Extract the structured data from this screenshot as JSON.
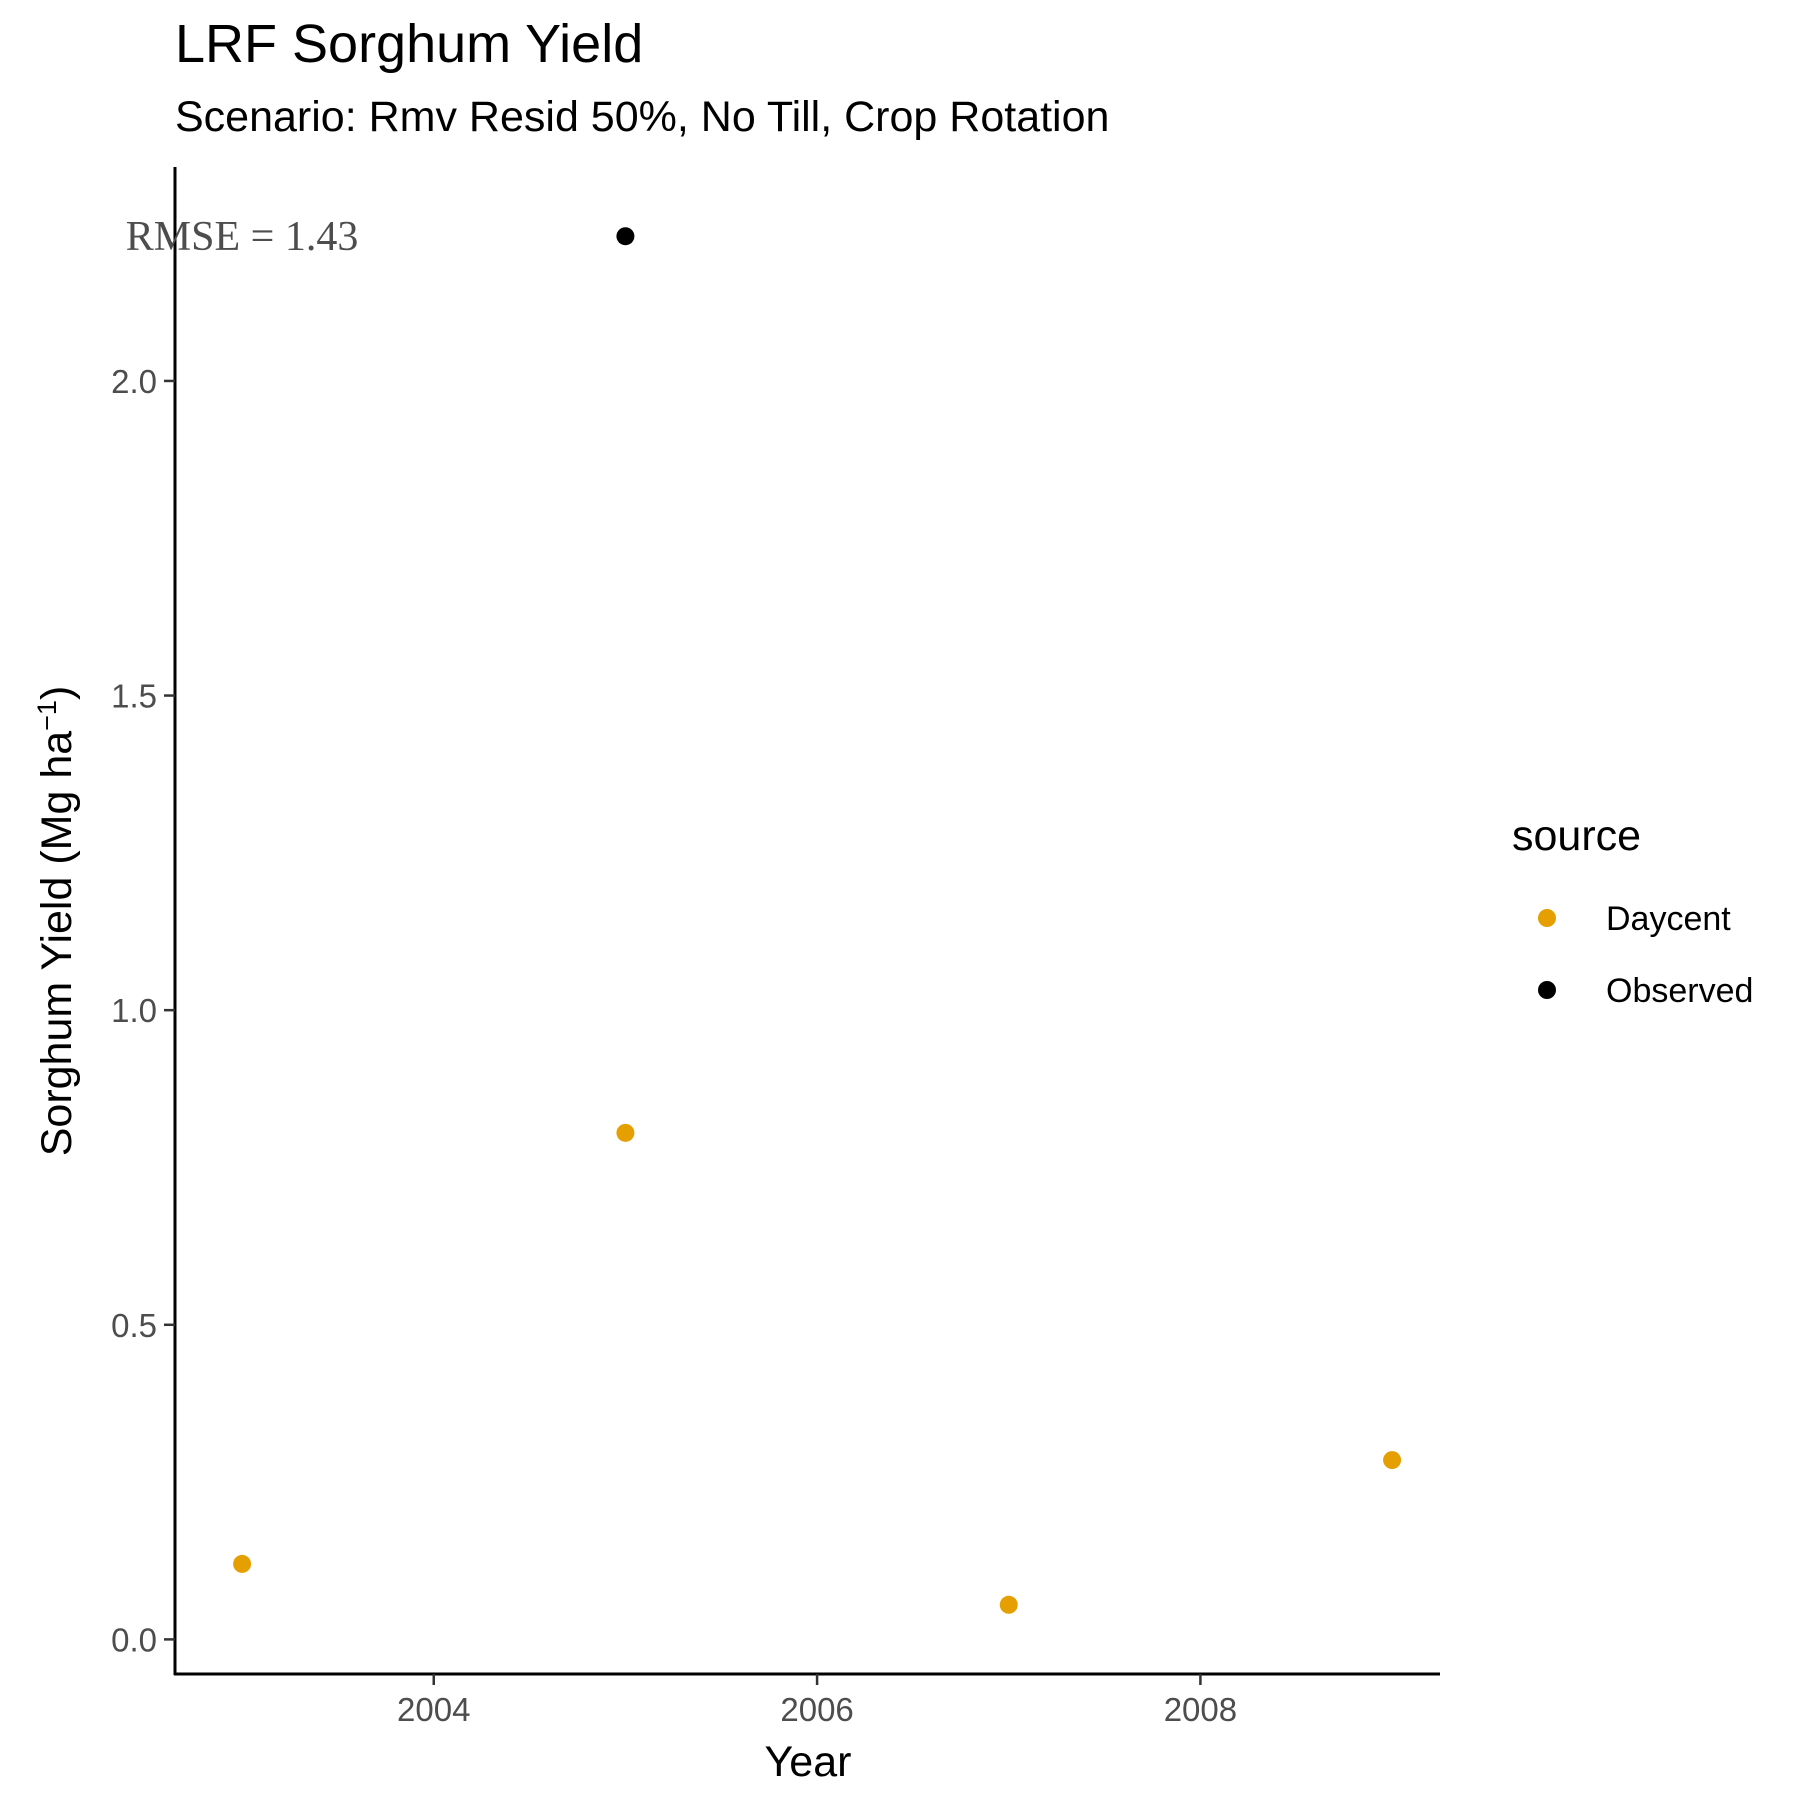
{
  "chart_data": {
    "type": "scatter",
    "title": "LRF Sorghum Yield",
    "subtitle": "Scenario: Rmv Resid 50%, No Till, Crop Rotation",
    "xlabel": "Year",
    "ylabel_main": "Sorghum Yield (Mg ha",
    "ylabel_sup": "−1",
    "ylabel_close": ")",
    "xlim": [
      2002.65,
      2009.25
    ],
    "ylim": [
      -0.055,
      2.34
    ],
    "x_ticks": [
      2004,
      2006,
      2008
    ],
    "x_tick_labels": [
      "2004",
      "2006",
      "2008"
    ],
    "y_ticks": [
      0.0,
      0.5,
      1.0,
      1.5,
      2.0
    ],
    "y_tick_labels": [
      "0.0",
      "0.5",
      "1.0",
      "1.5",
      "2.0"
    ],
    "grid": false,
    "legend": {
      "title": "source",
      "placement": "right"
    },
    "series": [
      {
        "name": "Daycent",
        "color": "#E69F00",
        "x": [
          2003,
          2005,
          2007,
          2009
        ],
        "y": [
          0.12,
          0.805,
          0.055,
          0.285
        ]
      },
      {
        "name": "Observed",
        "color": "#000000",
        "x": [
          2005
        ],
        "y": [
          2.23
        ]
      }
    ],
    "annotations": [
      {
        "text": "RMSE = 1.43",
        "x": 2003.0,
        "y": 2.23
      }
    ]
  }
}
